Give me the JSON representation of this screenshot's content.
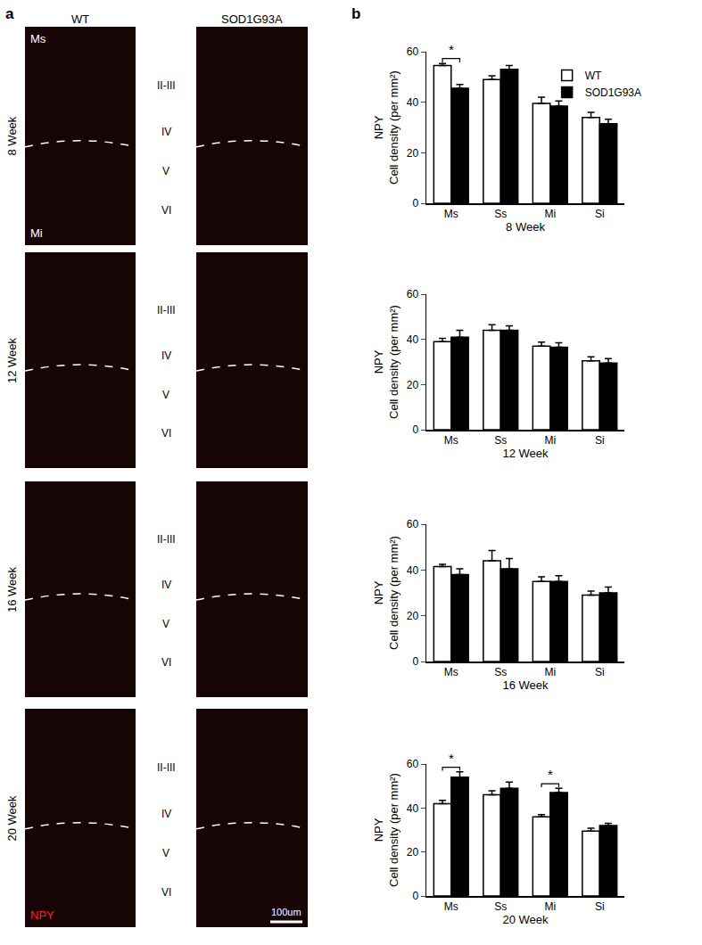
{
  "image_panel": {
    "panel_label": "a",
    "columns": [
      "WT",
      "SOD1G93A"
    ],
    "rows": [
      "8 Week",
      "12 Week",
      "16 Week",
      "20 Week"
    ],
    "layers": [
      "II-III",
      "IV",
      "V",
      "VI"
    ],
    "regions": [
      "Ms",
      "Mi"
    ],
    "stain": "NPY",
    "scale_bar": "100um"
  },
  "chart_panel_label": "b",
  "chart_data": [
    {
      "type": "bar",
      "x_label": "8 Week",
      "y_label": [
        "NPY",
        "Cell density (per mm²)"
      ],
      "categories": [
        "Ms",
        "Ss",
        "Mi",
        "Si"
      ],
      "series": [
        {
          "name": "WT",
          "color": "#ffffff",
          "values": [
            54.5,
            49,
            39.5,
            34
          ],
          "errors": [
            0.8,
            1.5,
            2.5,
            2
          ]
        },
        {
          "name": "SOD1G93A",
          "color": "#000000",
          "values": [
            45.5,
            53,
            38.5,
            31.5
          ],
          "errors": [
            1.5,
            1.5,
            2,
            1.8
          ]
        }
      ],
      "ylim": [
        0,
        60
      ],
      "yticks": [
        0,
        20,
        40,
        60
      ],
      "grid": false,
      "legend": "top right",
      "annotations": [
        {
          "category": "Ms",
          "text": "*"
        }
      ]
    },
    {
      "type": "bar",
      "x_label": "12 Week",
      "y_label": [
        "NPY",
        "Cell density (per mm²)"
      ],
      "categories": [
        "Ms",
        "Ss",
        "Mi",
        "Si"
      ],
      "series": [
        {
          "name": "WT",
          "color": "#ffffff",
          "values": [
            39,
            44,
            37,
            30.5
          ],
          "errors": [
            1.5,
            2.5,
            1.8,
            1.8
          ]
        },
        {
          "name": "SOD1G93A",
          "color": "#000000",
          "values": [
            41,
            44,
            36.5,
            29.5
          ],
          "errors": [
            3,
            2,
            2,
            2
          ]
        }
      ],
      "ylim": [
        0,
        60
      ],
      "yticks": [
        0,
        20,
        40,
        60
      ],
      "grid": false,
      "annotations": []
    },
    {
      "type": "bar",
      "x_label": "16 Week",
      "y_label": [
        "NPY",
        "Cell density (per mm²)"
      ],
      "categories": [
        "Ms",
        "Ss",
        "Mi",
        "Si"
      ],
      "series": [
        {
          "name": "WT",
          "color": "#ffffff",
          "values": [
            41.5,
            44,
            35,
            29
          ],
          "errors": [
            1,
            4.5,
            2,
            1.8
          ]
        },
        {
          "name": "SOD1G93A",
          "color": "#000000",
          "values": [
            38,
            40.5,
            35,
            30
          ],
          "errors": [
            2.5,
            4.5,
            2.5,
            2.5
          ]
        }
      ],
      "ylim": [
        0,
        60
      ],
      "yticks": [
        0,
        20,
        40,
        60
      ],
      "grid": false,
      "annotations": []
    },
    {
      "type": "bar",
      "x_label": "20 Week",
      "y_label": [
        "NPY",
        "Cell density (per mm²)"
      ],
      "categories": [
        "Ms",
        "Ss",
        "Mi",
        "Si"
      ],
      "series": [
        {
          "name": "WT",
          "color": "#ffffff",
          "values": [
            42,
            46,
            36,
            29.5
          ],
          "errors": [
            1.5,
            1.8,
            1,
            1.3
          ]
        },
        {
          "name": "SOD1G93A",
          "color": "#000000",
          "values": [
            54,
            49,
            47,
            32
          ],
          "errors": [
            2.5,
            2.8,
            2,
            1
          ]
        }
      ],
      "ylim": [
        0,
        60
      ],
      "yticks": [
        0,
        20,
        40,
        60
      ],
      "grid": false,
      "annotations": [
        {
          "category": "Ms",
          "text": "*"
        },
        {
          "category": "Mi",
          "text": "*"
        }
      ]
    }
  ]
}
